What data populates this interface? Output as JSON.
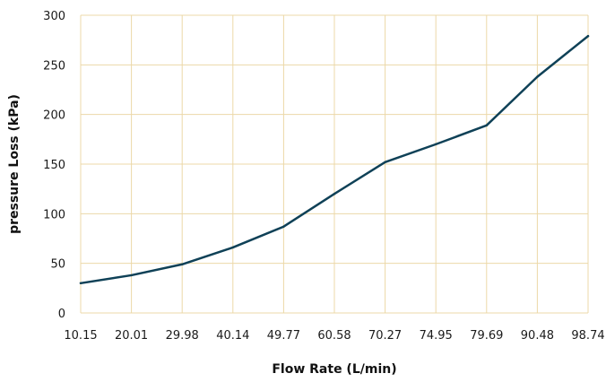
{
  "chart_data": {
    "type": "line",
    "title": "",
    "xlabel": "Flow Rate (L/min)",
    "ylabel": "pressure Loss (kPa)",
    "categories": [
      "10.15",
      "20.01",
      "29.98",
      "40.14",
      "49.77",
      "60.58",
      "70.27",
      "74.95",
      "79.69",
      "90.48",
      "98.74"
    ],
    "series": [
      {
        "values": [
          30,
          38,
          49,
          66,
          87,
          120,
          152,
          170,
          189,
          238,
          279
        ]
      }
    ],
    "ylim": [
      0,
      300
    ],
    "yticks": [
      0,
      50,
      100,
      150,
      200,
      250,
      300
    ],
    "grid": true,
    "legend": "none"
  },
  "colors": {
    "line": "#0f4157",
    "grid": "#ecd8a8",
    "text": "#1a1a1a"
  }
}
